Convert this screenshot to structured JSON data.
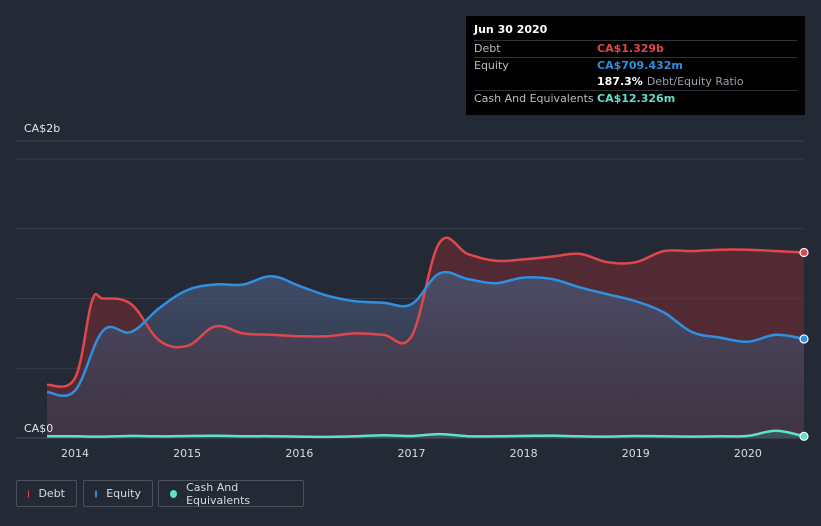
{
  "tooltip": {
    "date": "Jun 30 2020",
    "rows": [
      {
        "label": "Debt",
        "value": "CA$1.329b"
      },
      {
        "label": "Equity",
        "value": "CA$709.432m"
      },
      {
        "label": "",
        "value": "187.3%",
        "extra": "Debt/Equity Ratio"
      },
      {
        "label": "Cash And Equivalents",
        "value": "CA$12.326m"
      }
    ]
  },
  "colors": {
    "debt": "#e0474c",
    "equity": "#2f8fe0",
    "cash": "#5fe0c8",
    "background": "#232a36"
  },
  "legend": [
    {
      "label": "Debt",
      "color": "#e0474c"
    },
    {
      "label": "Equity",
      "color": "#2f8fe0"
    },
    {
      "label": "Cash And Equivalents",
      "color": "#5fe0c8"
    }
  ],
  "chart_data": {
    "type": "area",
    "title": "",
    "xlabel": "",
    "ylabel": "",
    "y_tick_labels": [
      "CA$2b",
      "CA$0"
    ],
    "ylim": [
      0,
      2.0
    ],
    "y_unit": "CA$ billions",
    "x_tick_labels": [
      "2014",
      "2015",
      "2016",
      "2017",
      "2018",
      "2019",
      "2020"
    ],
    "xlim": [
      2013.75,
      2020.5
    ],
    "grid": true,
    "legend_position": "bottom-left",
    "series": [
      {
        "name": "Debt",
        "x": [
          2013.75,
          2014.0,
          2014.15,
          2014.25,
          2014.5,
          2014.75,
          2015.0,
          2015.25,
          2015.5,
          2015.75,
          2016.0,
          2016.25,
          2016.5,
          2016.75,
          2017.0,
          2017.25,
          2017.5,
          2017.75,
          2018.0,
          2018.25,
          2018.5,
          2018.75,
          2019.0,
          2019.25,
          2019.5,
          2019.75,
          2020.0,
          2020.25,
          2020.5
        ],
        "values": [
          0.38,
          0.43,
          0.98,
          1.0,
          0.96,
          0.7,
          0.66,
          0.8,
          0.75,
          0.74,
          0.73,
          0.73,
          0.75,
          0.74,
          0.73,
          1.4,
          1.32,
          1.27,
          1.28,
          1.3,
          1.32,
          1.26,
          1.26,
          1.34,
          1.34,
          1.35,
          1.35,
          1.34,
          1.33
        ]
      },
      {
        "name": "Equity",
        "x": [
          2013.75,
          2014.0,
          2014.25,
          2014.5,
          2014.75,
          2015.0,
          2015.25,
          2015.5,
          2015.75,
          2016.0,
          2016.25,
          2016.5,
          2016.75,
          2017.0,
          2017.25,
          2017.5,
          2017.75,
          2018.0,
          2018.25,
          2018.5,
          2018.75,
          2019.0,
          2019.25,
          2019.5,
          2019.75,
          2020.0,
          2020.25,
          2020.5
        ],
        "values": [
          0.33,
          0.34,
          0.77,
          0.76,
          0.93,
          1.06,
          1.1,
          1.1,
          1.16,
          1.09,
          1.02,
          0.98,
          0.97,
          0.96,
          1.18,
          1.14,
          1.11,
          1.15,
          1.14,
          1.08,
          1.03,
          0.98,
          0.9,
          0.76,
          0.72,
          0.69,
          0.74,
          0.71
        ]
      },
      {
        "name": "Cash And Equivalents",
        "x": [
          2013.75,
          2014.0,
          2014.25,
          2014.5,
          2014.75,
          2015.0,
          2015.25,
          2015.5,
          2015.75,
          2016.0,
          2016.25,
          2016.5,
          2016.75,
          2017.0,
          2017.25,
          2017.5,
          2017.75,
          2018.0,
          2018.25,
          2018.5,
          2018.75,
          2019.0,
          2019.25,
          2019.5,
          2019.75,
          2020.0,
          2020.25,
          2020.5
        ],
        "values": [
          0.012,
          0.012,
          0.01,
          0.015,
          0.012,
          0.014,
          0.016,
          0.013,
          0.013,
          0.01,
          0.008,
          0.012,
          0.02,
          0.014,
          0.028,
          0.013,
          0.012,
          0.015,
          0.017,
          0.012,
          0.01,
          0.014,
          0.012,
          0.01,
          0.012,
          0.015,
          0.052,
          0.012
        ]
      }
    ]
  }
}
